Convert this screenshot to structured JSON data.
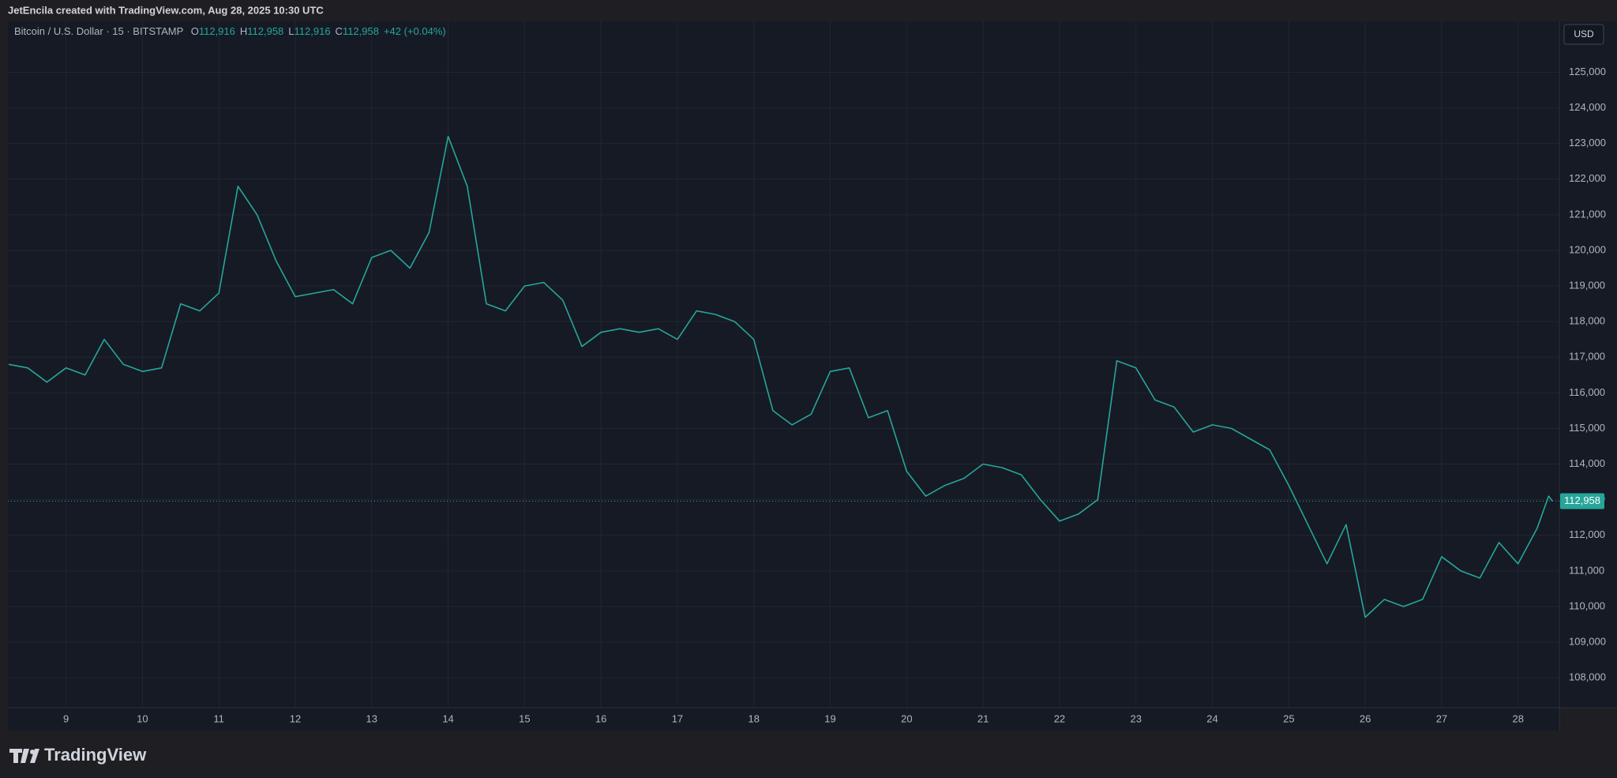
{
  "chart_data": {
    "type": "line",
    "header": "JetEncila created with TradingView.com, Aug 28, 2025 10:30 UTC",
    "symbol": "Bitcoin / U.S. Dollar · 15 · BITSTAMP",
    "ohlc": [
      {
        "key": "O",
        "value": "112,916"
      },
      {
        "key": "H",
        "value": "112,958"
      },
      {
        "key": "L",
        "value": "112,916"
      },
      {
        "key": "C",
        "value": "112,958"
      }
    ],
    "change": "+42 (+0.04%)",
    "currency": "USD",
    "brand": "TradingView",
    "last_price": {
      "value": 112958,
      "label": "112,958"
    },
    "x": [
      8.25,
      8.5,
      8.75,
      9,
      9.25,
      9.5,
      9.75,
      10,
      10.25,
      10.5,
      10.75,
      11,
      11.25,
      11.5,
      11.75,
      12,
      12.25,
      12.5,
      12.75,
      13,
      13.25,
      13.5,
      13.75,
      14,
      14.25,
      14.5,
      14.75,
      15,
      15.25,
      15.5,
      15.75,
      16,
      16.25,
      16.5,
      16.75,
      17,
      17.25,
      17.5,
      17.75,
      18,
      18.25,
      18.5,
      18.75,
      19,
      19.25,
      19.5,
      19.75,
      20,
      20.25,
      20.5,
      20.75,
      21,
      21.25,
      21.5,
      21.75,
      22,
      22.25,
      22.5,
      22.75,
      23,
      23.25,
      23.5,
      23.75,
      24,
      24.25,
      24.5,
      24.75,
      25,
      25.25,
      25.5,
      25.75,
      26,
      26.25,
      26.5,
      26.75,
      27,
      27.25,
      27.5,
      27.75,
      28,
      28.25,
      28.4,
      28.45
    ],
    "series": [
      {
        "name": "Bitcoin / U.S. Dollar",
        "color": "#26a69a",
        "values": [
          116800,
          116700,
          116300,
          116700,
          116500,
          117500,
          116800,
          116600,
          116700,
          118500,
          118300,
          118800,
          121800,
          121000,
          119700,
          118700,
          118800,
          118900,
          118500,
          119800,
          120000,
          119500,
          120500,
          123200,
          121800,
          118500,
          118300,
          119000,
          119100,
          118600,
          117300,
          117700,
          117800,
          117700,
          117800,
          117500,
          118300,
          118200,
          118000,
          117500,
          115500,
          115100,
          115400,
          116600,
          116700,
          115300,
          115500,
          113800,
          113100,
          113400,
          113600,
          114000,
          113900,
          113700,
          113000,
          112400,
          112600,
          113000,
          116900,
          116700,
          115800,
          115600,
          114900,
          115100,
          115000,
          114700,
          114400,
          113400,
          112300,
          111200,
          112300,
          109700,
          110200,
          110000,
          110200,
          111400,
          111000,
          110800,
          111800,
          111200,
          112200,
          113100,
          112958
        ]
      }
    ],
    "xlim": [
      8.24,
      28.54
    ],
    "xticks": [
      9,
      10,
      11,
      12,
      13,
      14,
      15,
      16,
      17,
      18,
      19,
      20,
      21,
      22,
      23,
      24,
      25,
      26,
      27,
      28
    ],
    "ylim": [
      107160,
      126430
    ],
    "yticks": [
      {
        "value": 108000,
        "label": "108,000"
      },
      {
        "value": 109000,
        "label": "109,000"
      },
      {
        "value": 110000,
        "label": "110,000"
      },
      {
        "value": 111000,
        "label": "111,000"
      },
      {
        "value": 112000,
        "label": "112,000"
      },
      {
        "value": 113000,
        "label": "113,000"
      },
      {
        "value": 114000,
        "label": "114,000"
      },
      {
        "value": 115000,
        "label": "115,000"
      },
      {
        "value": 116000,
        "label": "116,000"
      },
      {
        "value": 117000,
        "label": "117,000"
      },
      {
        "value": 118000,
        "label": "118,000"
      },
      {
        "value": 119000,
        "label": "119,000"
      },
      {
        "value": 120000,
        "label": "120,000"
      },
      {
        "value": 121000,
        "label": "121,000"
      },
      {
        "value": 122000,
        "label": "122,000"
      },
      {
        "value": 123000,
        "label": "123,000"
      },
      {
        "value": 124000,
        "label": "124,000"
      },
      {
        "value": 125000,
        "label": "125,000"
      }
    ],
    "grid": true
  }
}
